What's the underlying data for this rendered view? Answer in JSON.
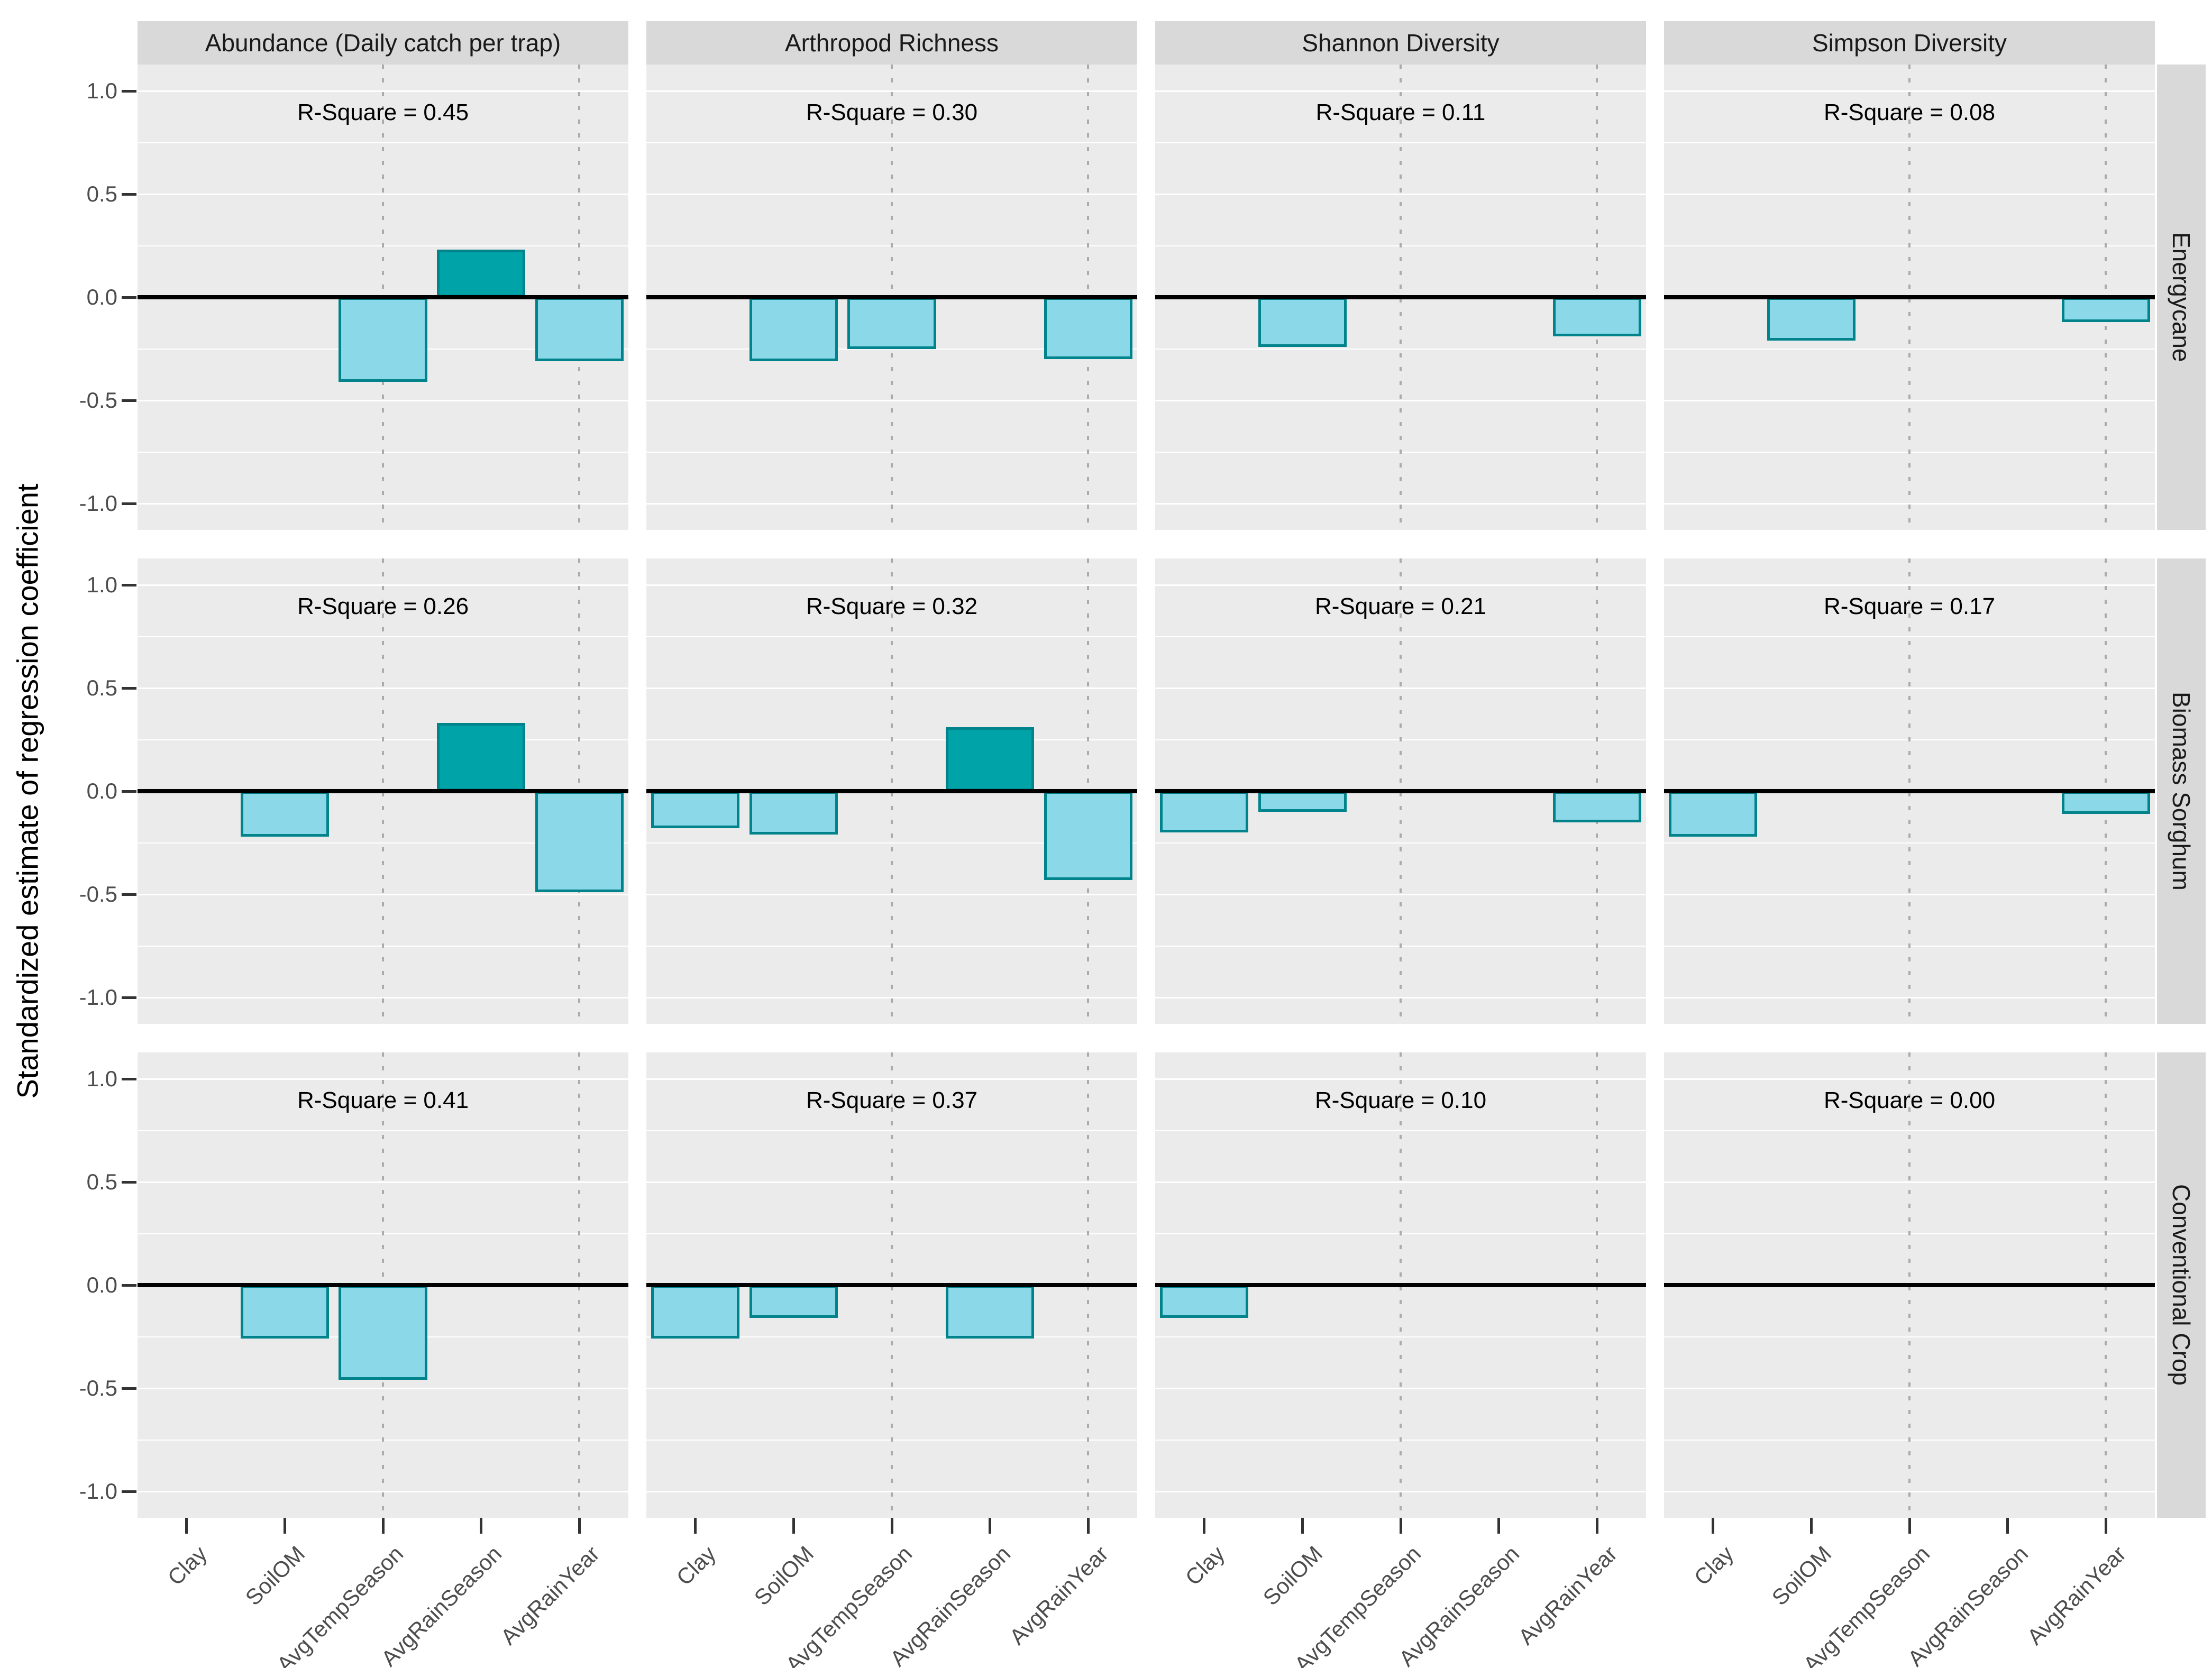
{
  "chart_data": {
    "type": "bar",
    "title": "",
    "ylabel": "Standardized estimate of regression coefficient",
    "xlabel": "",
    "categories": [
      "Clay",
      "SoilOM",
      "AvgTempSeason",
      "AvgRainSeason",
      "AvgRainYear"
    ],
    "facet_columns": [
      "Abundance (Daily catch per trap)",
      "Arthropod Richness",
      "Shannon Diversity",
      "Simpson Diversity"
    ],
    "facet_rows": [
      "Energycane",
      "Biomass Sorghum",
      "Conventional Crop"
    ],
    "ylim": [
      -1.12,
      1.12
    ],
    "y_ticks": [
      "1.0",
      "0.5",
      "0.0",
      "-0.5",
      "-1.0"
    ],
    "y_tick_values": [
      1.0,
      0.5,
      0.0,
      -0.5,
      -1.0
    ],
    "grid": "horizontal-only",
    "legend": "none",
    "r_square_label_prefix": "R-Square = ",
    "dotted_guide_positions": [
      2.5,
      4.5
    ],
    "panels": [
      {
        "row": "Energycane",
        "column": "Abundance (Daily catch per trap)",
        "r_square": "0.45",
        "values": [
          null,
          null,
          -0.41,
          0.23,
          -0.31
        ]
      },
      {
        "row": "Energycane",
        "column": "Arthropod Richness",
        "r_square": "0.30",
        "values": [
          null,
          -0.31,
          -0.25,
          null,
          -0.3
        ]
      },
      {
        "row": "Energycane",
        "column": "Shannon Diversity",
        "r_square": "0.11",
        "values": [
          null,
          -0.24,
          null,
          null,
          -0.19
        ]
      },
      {
        "row": "Energycane",
        "column": "Simpson Diversity",
        "r_square": "0.08",
        "values": [
          null,
          -0.21,
          null,
          null,
          -0.12
        ]
      },
      {
        "row": "Biomass Sorghum",
        "column": "Abundance (Daily catch per trap)",
        "r_square": "0.26",
        "values": [
          null,
          -0.22,
          null,
          0.33,
          -0.49
        ]
      },
      {
        "row": "Biomass Sorghum",
        "column": "Arthropod Richness",
        "r_square": "0.32",
        "values": [
          -0.18,
          -0.21,
          null,
          0.31,
          -0.43
        ]
      },
      {
        "row": "Biomass Sorghum",
        "column": "Shannon Diversity",
        "r_square": "0.21",
        "values": [
          -0.2,
          -0.1,
          null,
          null,
          -0.15
        ]
      },
      {
        "row": "Biomass Sorghum",
        "column": "Simpson Diversity",
        "r_square": "0.17",
        "values": [
          -0.22,
          null,
          null,
          null,
          -0.11
        ]
      },
      {
        "row": "Conventional Crop",
        "column": "Abundance (Daily catch per trap)",
        "r_square": "0.41",
        "values": [
          null,
          -0.26,
          -0.46,
          null,
          null
        ]
      },
      {
        "row": "Conventional Crop",
        "column": "Arthropod Richness",
        "r_square": "0.37",
        "values": [
          -0.26,
          -0.16,
          null,
          -0.26,
          null
        ]
      },
      {
        "row": "Conventional Crop",
        "column": "Shannon Diversity",
        "r_square": "0.10",
        "values": [
          -0.16,
          null,
          null,
          null,
          null
        ]
      },
      {
        "row": "Conventional Crop",
        "column": "Simpson Diversity",
        "r_square": "0.00",
        "values": [
          null,
          null,
          null,
          null,
          null
        ]
      }
    ],
    "colors": {
      "positive_fill": "#00a3a8",
      "negative_fill": "#8ad8e8",
      "bar_border": "#00838a",
      "panel_background": "#ebebeb",
      "strip_background": "#d9d9d9",
      "gridline": "#ffffff",
      "dotted_guide": "#ababab",
      "zero_line": "#000000",
      "tick_text": "#4d4d4d",
      "strip_text": "#1a1a1a"
    }
  }
}
